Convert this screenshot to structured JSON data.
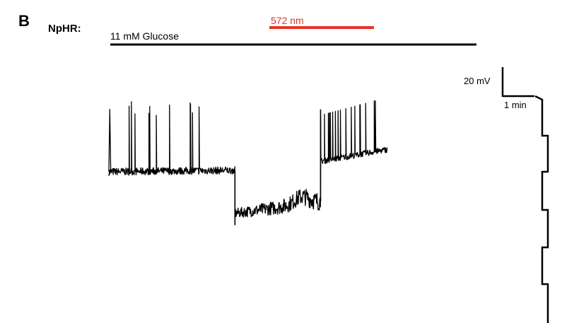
{
  "panel_letter": "B",
  "construct": "NpHR:",
  "bars": {
    "glucose": {
      "label": "11 mM Glucose",
      "color": "#000000"
    },
    "light": {
      "label": "572 nm",
      "color": "#e8322a"
    }
  },
  "scale_bar": {
    "voltage_label": "20 mV",
    "time_label": "1 min"
  },
  "colors": {
    "trace": "#000000",
    "light_bar": "#e8322a",
    "background": "#ffffff"
  },
  "chart_data": {
    "type": "line",
    "title": "",
    "xlabel": "",
    "ylabel": "",
    "x_unit": "min",
    "y_unit": "mV",
    "grid": false,
    "legend": "none",
    "xlim": [
      0,
      7.7
    ],
    "ylim": [
      -80,
      0
    ],
    "glucose_period": [
      0,
      7.7
    ],
    "light_period": [
      3.4,
      5.2
    ],
    "series": [
      {
        "values_description_free": true,
        "segments": [
          {
            "t_start": 0.0,
            "t_end": 2.65,
            "baseline_mV": -52,
            "baseline_end_mV": -51,
            "noise_mV": 2.5,
            "spike_peak_mV": -14,
            "spike_density": "bursting"
          },
          {
            "t_start": 2.65,
            "t_end": 4.45,
            "baseline_mV": -80,
            "baseline_end_mV": -72,
            "noise_mV": 4,
            "spike_peak_mV": null,
            "spike_density": "none"
          },
          {
            "t_start": 4.45,
            "t_end": 5.85,
            "baseline_mV": -45,
            "baseline_end_mV": -37,
            "noise_mV": 2,
            "spike_peak_mV": -14,
            "spike_density": "tonic"
          }
        ]
      }
    ]
  }
}
